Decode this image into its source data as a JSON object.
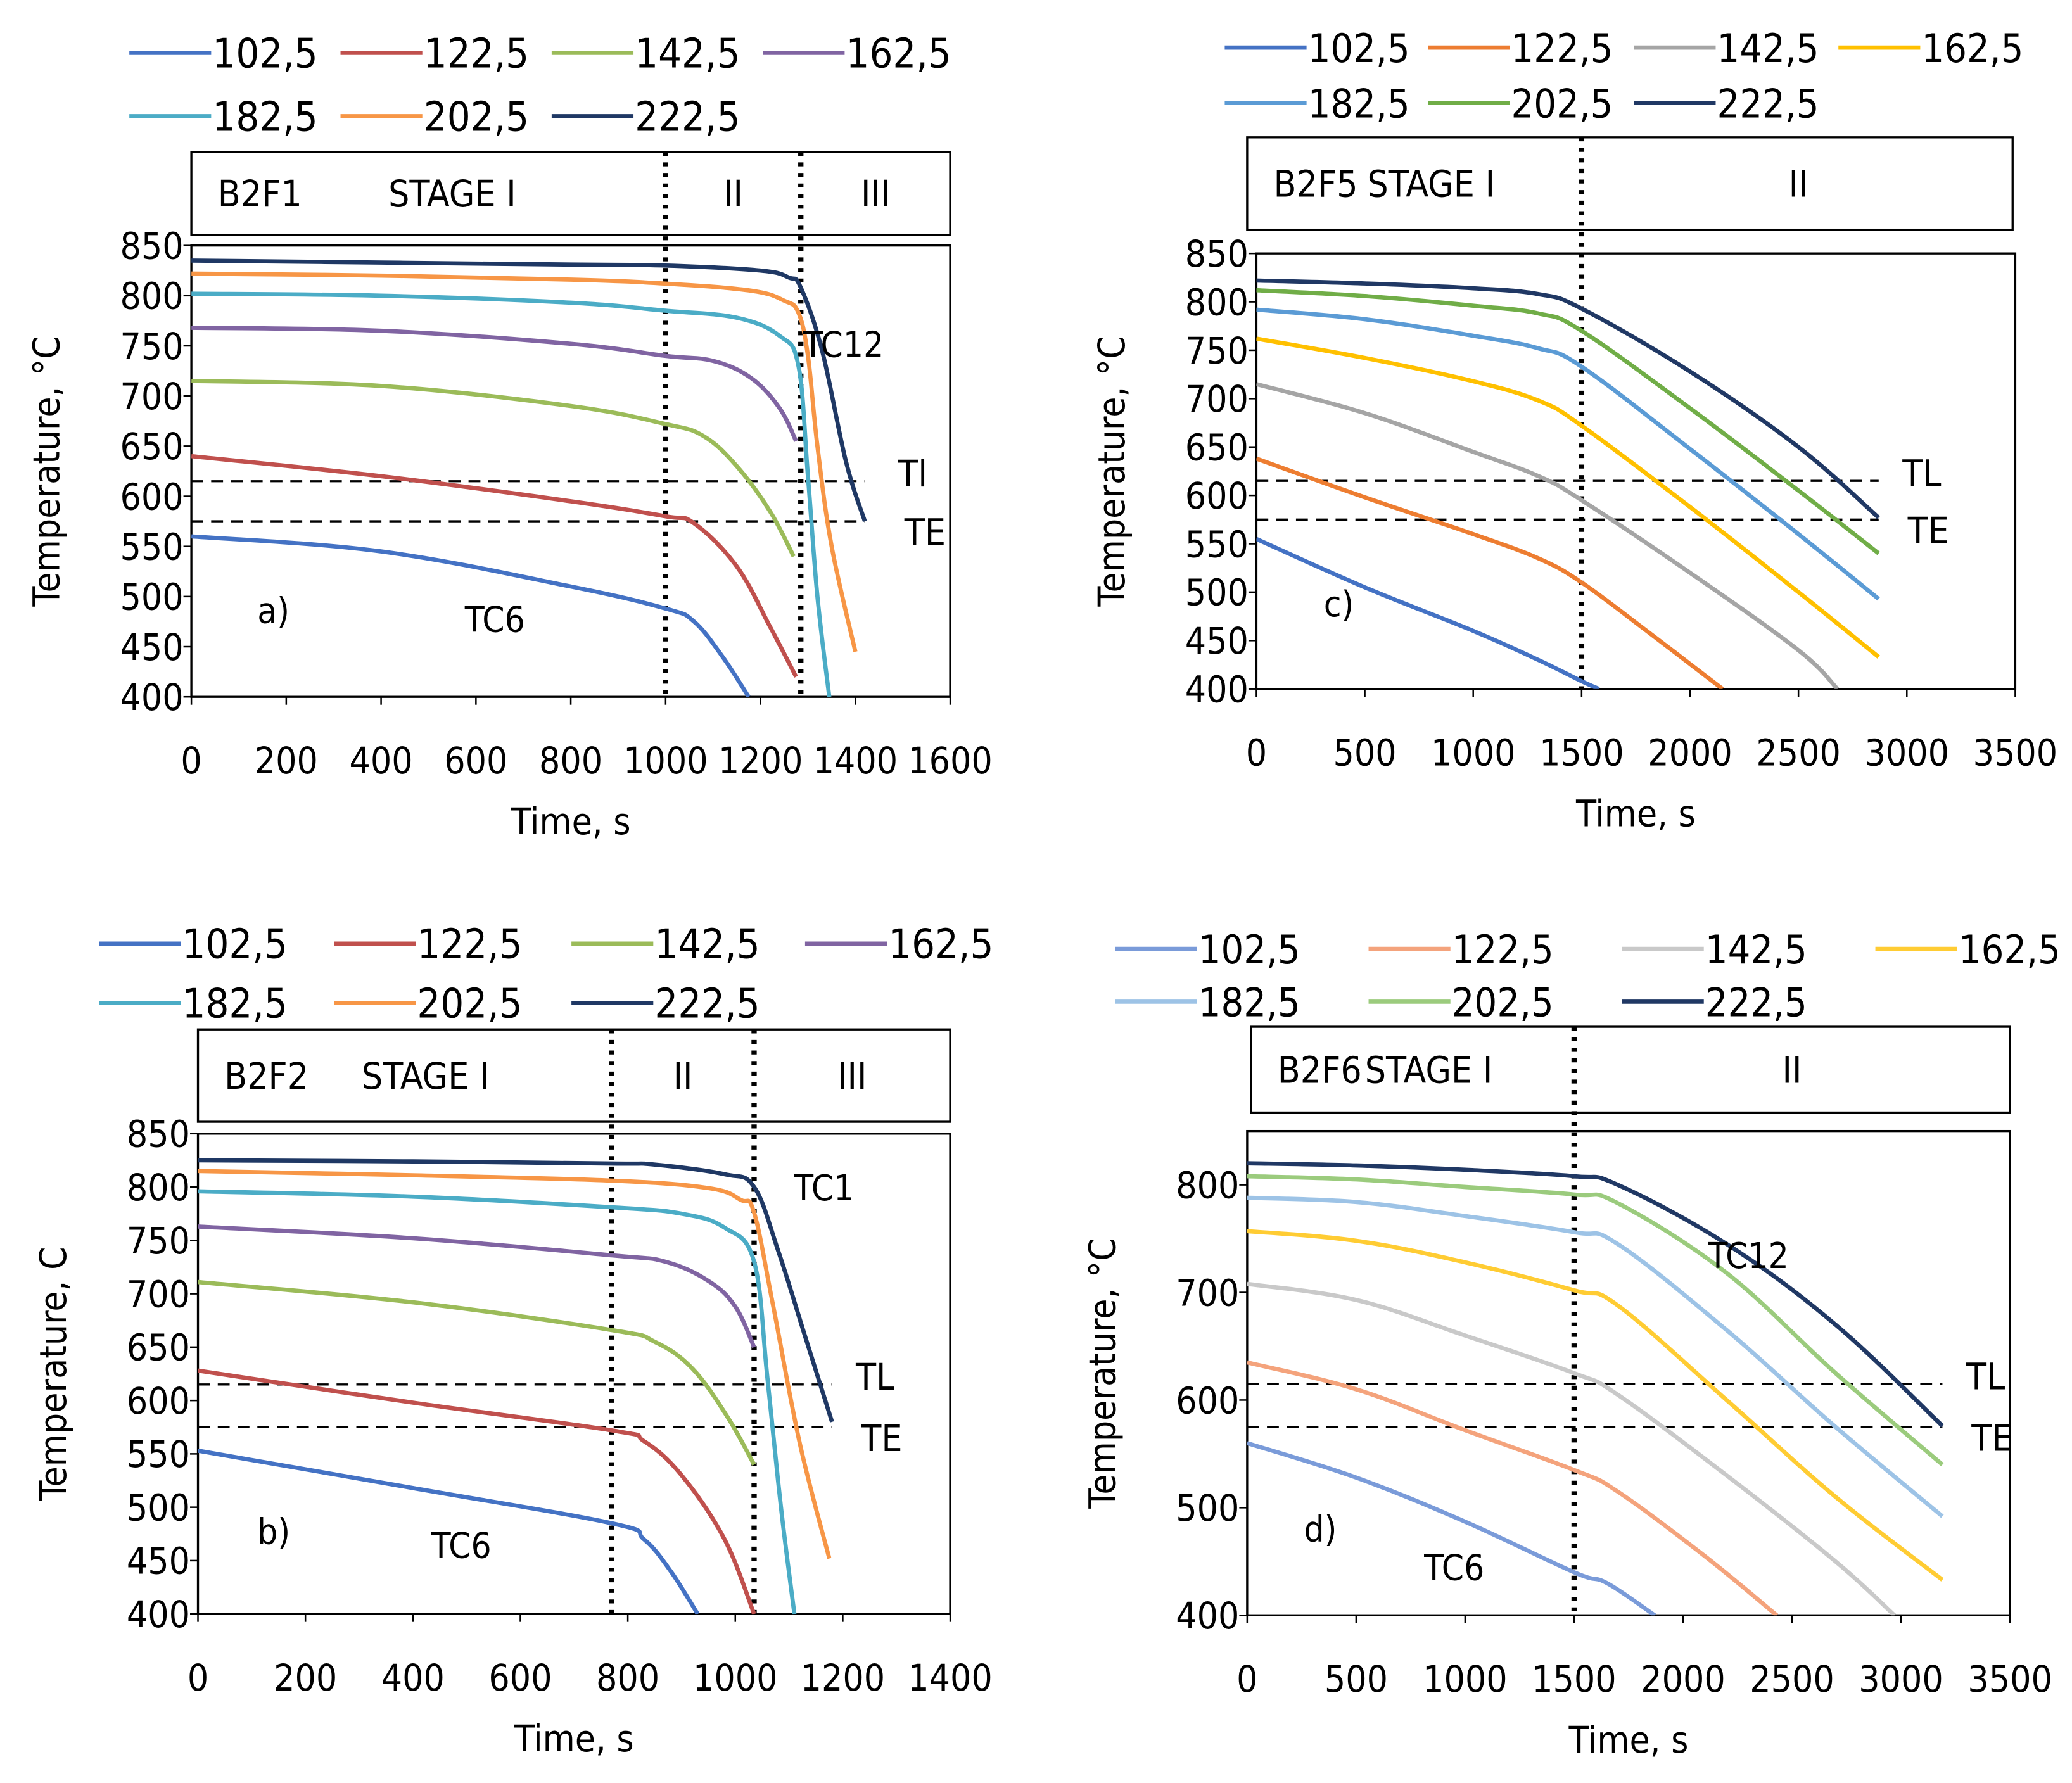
{
  "legend_labels": [
    "102,5",
    "122,5",
    "142,5",
    "162,5",
    "182,5",
    "202,5",
    "222,5"
  ],
  "palettes": {
    "excel_a": [
      "#4472C4",
      "#C0504D",
      "#9BBB59",
      "#8064A2",
      "#4BACC6",
      "#F79646",
      "#1F3864"
    ],
    "excel_b": [
      "#4472C4",
      "#ED7D31",
      "#A5A5A5",
      "#FFC000",
      "#5B9BD5",
      "#70AD47",
      "#203864"
    ],
    "excel_d": [
      "#7A9BD9",
      "#F4A37C",
      "#C9C9C9",
      "#FFCC33",
      "#9DC3E6",
      "#9BCB7D",
      "#203864"
    ]
  },
  "chart_data": [
    {
      "id": "a",
      "type": "line",
      "panel_label": "a)",
      "specimen": "B2F1",
      "stages": [
        "STAGE  I",
        "II",
        "III"
      ],
      "stage_boundaries": [
        1000,
        1285
      ],
      "xlabel": "Time, s",
      "ylabel": "Temperature, °C",
      "xlim": [
        0,
        1600
      ],
      "ylim": [
        400,
        850
      ],
      "xticks": [
        0,
        200,
        400,
        600,
        800,
        1000,
        1200,
        1400,
        1600
      ],
      "yticks": [
        400,
        450,
        500,
        550,
        600,
        650,
        700,
        750,
        800,
        850
      ],
      "ref_lines": [
        {
          "label": "Tl",
          "y": 615,
          "x_end": 1420
        },
        {
          "label": "TE",
          "y": 575,
          "x_end": 1420
        }
      ],
      "annotations": [
        {
          "text": "TC12",
          "x": 1375,
          "y": 752
        },
        {
          "text": "TC6",
          "x": 640,
          "y": 478
        }
      ],
      "series": [
        {
          "name": "102,5",
          "x": [
            0,
            400,
            800,
            1000,
            1060,
            1120,
            1175
          ],
          "y": [
            560,
            545,
            510,
            488,
            475,
            440,
            400
          ]
        },
        {
          "name": "122,5",
          "x": [
            0,
            400,
            800,
            1000,
            1060,
            1150,
            1220,
            1275
          ],
          "y": [
            640,
            620,
            595,
            580,
            573,
            530,
            470,
            420
          ]
        },
        {
          "name": "142,5",
          "x": [
            0,
            400,
            800,
            1000,
            1080,
            1150,
            1220,
            1270
          ],
          "y": [
            715,
            710,
            690,
            672,
            660,
            630,
            585,
            540
          ]
        },
        {
          "name": "162,5",
          "x": [
            0,
            400,
            800,
            1000,
            1100,
            1180,
            1240,
            1275
          ],
          "y": [
            768,
            765,
            752,
            740,
            735,
            718,
            688,
            655
          ]
        },
        {
          "name": "182,5",
          "x": [
            0,
            400,
            800,
            1000,
            1150,
            1240,
            1280,
            1300,
            1320,
            1345
          ],
          "y": [
            802,
            800,
            793,
            785,
            778,
            760,
            730,
            620,
            500,
            400
          ]
        },
        {
          "name": "202,5",
          "x": [
            0,
            400,
            800,
            1000,
            1180,
            1250,
            1280,
            1300,
            1320,
            1350,
            1400
          ],
          "y": [
            822,
            820,
            816,
            812,
            805,
            795,
            783,
            740,
            650,
            550,
            445
          ]
        },
        {
          "name": "222,5",
          "x": [
            0,
            400,
            800,
            1000,
            1200,
            1260,
            1285,
            1330,
            1380,
            1420
          ],
          "y": [
            835,
            833,
            831,
            830,
            825,
            818,
            808,
            745,
            635,
            575
          ]
        }
      ]
    },
    {
      "id": "c",
      "type": "line",
      "panel_label": "c)",
      "specimen": "B2F5",
      "stages": [
        "STAGE I",
        "II"
      ],
      "stage_boundaries": [
        1500
      ],
      "xlabel": "Time, s",
      "ylabel": "Temperature, °C",
      "xlim": [
        0,
        3500
      ],
      "ylim": [
        400,
        850
      ],
      "xticks": [
        0,
        500,
        1000,
        1500,
        2000,
        2500,
        3000,
        3500
      ],
      "yticks": [
        400,
        450,
        500,
        550,
        600,
        650,
        700,
        750,
        800,
        850
      ],
      "ref_lines": [
        {
          "label": "TL",
          "y": 615,
          "x_end": 2870
        },
        {
          "label": "TE",
          "y": 575,
          "x_end": 2870
        }
      ],
      "annotations": [],
      "series": [
        {
          "name": "102,5",
          "x": [
            0,
            500,
            1000,
            1300,
            1500,
            1580
          ],
          "y": [
            555,
            505,
            460,
            430,
            408,
            400
          ]
        },
        {
          "name": "122,5",
          "x": [
            0,
            500,
            1000,
            1300,
            1500,
            1800,
            2150
          ],
          "y": [
            638,
            598,
            560,
            535,
            510,
            460,
            400
          ]
        },
        {
          "name": "142,5",
          "x": [
            0,
            500,
            1000,
            1300,
            1500,
            2000,
            2500,
            2680
          ],
          "y": [
            715,
            685,
            645,
            620,
            595,
            520,
            440,
            400
          ]
        },
        {
          "name": "162,5",
          "x": [
            0,
            500,
            1000,
            1300,
            1500,
            2000,
            2500,
            2870
          ],
          "y": [
            762,
            742,
            718,
            698,
            672,
            588,
            500,
            433
          ]
        },
        {
          "name": "182,5",
          "x": [
            0,
            500,
            1000,
            1300,
            1500,
            2000,
            2500,
            2870
          ],
          "y": [
            792,
            782,
            765,
            752,
            733,
            648,
            560,
            493
          ]
        },
        {
          "name": "202,5",
          "x": [
            0,
            500,
            1000,
            1300,
            1500,
            2000,
            2500,
            2870
          ],
          "y": [
            812,
            806,
            796,
            788,
            770,
            690,
            605,
            540
          ]
        },
        {
          "name": "222,5",
          "x": [
            0,
            500,
            1000,
            1300,
            1500,
            2000,
            2500,
            2870
          ],
          "y": [
            822,
            819,
            814,
            808,
            793,
            728,
            650,
            577
          ]
        }
      ]
    },
    {
      "id": "b",
      "type": "line",
      "panel_label": "b)",
      "specimen": "B2F2",
      "stages": [
        "STAGE I",
        "II",
        "III"
      ],
      "stage_boundaries": [
        770,
        1035
      ],
      "xlabel": "Time, s",
      "ylabel": "Temperature, C",
      "xlim": [
        0,
        1400
      ],
      "ylim": [
        400,
        850
      ],
      "xticks": [
        0,
        200,
        400,
        600,
        800,
        1000,
        1200,
        1400
      ],
      "yticks": [
        400,
        450,
        500,
        550,
        600,
        650,
        700,
        750,
        800,
        850
      ],
      "ref_lines": [
        {
          "label": "TL",
          "y": 615,
          "x_end": 1180
        },
        {
          "label": "TE",
          "y": 575,
          "x_end": 1180
        }
      ],
      "annotations": [
        {
          "text": "TC1",
          "x": 1165,
          "y": 800
        },
        {
          "text": "TC6",
          "x": 490,
          "y": 465
        }
      ],
      "series": [
        {
          "name": "102,5",
          "x": [
            0,
            400,
            770,
            830,
            880,
            930
          ],
          "y": [
            553,
            518,
            485,
            470,
            440,
            400
          ]
        },
        {
          "name": "122,5",
          "x": [
            0,
            400,
            770,
            830,
            900,
            980,
            1035
          ],
          "y": [
            628,
            598,
            572,
            562,
            530,
            470,
            400
          ]
        },
        {
          "name": "142,5",
          "x": [
            0,
            400,
            770,
            850,
            920,
            985,
            1035
          ],
          "y": [
            711,
            692,
            666,
            655,
            630,
            585,
            540
          ]
        },
        {
          "name": "162,5",
          "x": [
            0,
            400,
            770,
            870,
            950,
            1000,
            1035
          ],
          "y": [
            763,
            752,
            736,
            730,
            712,
            688,
            650
          ]
        },
        {
          "name": "182,5",
          "x": [
            0,
            400,
            770,
            900,
            980,
            1035,
            1060,
            1085,
            1110
          ],
          "y": [
            796,
            791,
            781,
            775,
            762,
            730,
            620,
            500,
            400
          ]
        },
        {
          "name": "202,5",
          "x": [
            0,
            400,
            770,
            950,
            1010,
            1035,
            1070,
            1120,
            1175
          ],
          "y": [
            815,
            811,
            806,
            799,
            788,
            776,
            690,
            560,
            452
          ]
        },
        {
          "name": "222,5",
          "x": [
            0,
            400,
            770,
            850,
            980,
            1035,
            1080,
            1130,
            1180
          ],
          "y": [
            825,
            824,
            822,
            821,
            812,
            800,
            740,
            660,
            580
          ]
        }
      ]
    },
    {
      "id": "d",
      "type": "line",
      "panel_label": "d)",
      "specimen": "B2F6",
      "stages": [
        "STAGE I",
        "II"
      ],
      "stage_boundaries": [
        1500
      ],
      "xlabel": "Time, s",
      "ylabel": "Temperature, °C",
      "xlim": [
        0,
        3500
      ],
      "ylim": [
        400,
        850
      ],
      "xticks": [
        0,
        500,
        1000,
        1500,
        2000,
        2500,
        3000,
        3500
      ],
      "yticks": [
        400,
        500,
        600,
        700,
        800
      ],
      "ref_lines": [
        {
          "label": "TL",
          "y": 615,
          "x_end": 3190
        },
        {
          "label": "TE",
          "y": 575,
          "x_end": 3190
        }
      ],
      "annotations": [
        {
          "text": "TC12",
          "x": 2300,
          "y": 735
        },
        {
          "text": "TC6",
          "x": 950,
          "y": 445
        }
      ],
      "series": [
        {
          "name": "102,5",
          "x": [
            0,
            500,
            1000,
            1500,
            1650,
            1870
          ],
          "y": [
            560,
            528,
            487,
            440,
            430,
            400
          ]
        },
        {
          "name": "122,5",
          "x": [
            0,
            500,
            1000,
            1500,
            1700,
            2100,
            2430
          ],
          "y": [
            635,
            610,
            572,
            535,
            515,
            455,
            400
          ]
        },
        {
          "name": "142,5",
          "x": [
            0,
            500,
            1000,
            1500,
            1700,
            2200,
            2700,
            2970
          ],
          "y": [
            708,
            693,
            660,
            625,
            605,
            530,
            450,
            400
          ]
        },
        {
          "name": "162,5",
          "x": [
            0,
            500,
            1000,
            1500,
            1700,
            2200,
            2700,
            3190
          ],
          "y": [
            757,
            748,
            728,
            702,
            688,
            600,
            510,
            433
          ]
        },
        {
          "name": "182,5",
          "x": [
            0,
            500,
            1000,
            1500,
            1700,
            2200,
            2700,
            3190
          ],
          "y": [
            788,
            784,
            771,
            756,
            745,
            665,
            575,
            492
          ]
        },
        {
          "name": "202,5",
          "x": [
            0,
            500,
            1000,
            1500,
            1700,
            2200,
            2700,
            3190
          ],
          "y": [
            808,
            805,
            798,
            791,
            783,
            718,
            625,
            540
          ]
        },
        {
          "name": "222,5",
          "x": [
            0,
            500,
            1000,
            1500,
            1700,
            2200,
            2700,
            3190
          ],
          "y": [
            820,
            818,
            814,
            808,
            800,
            745,
            670,
            576
          ]
        }
      ]
    }
  ]
}
